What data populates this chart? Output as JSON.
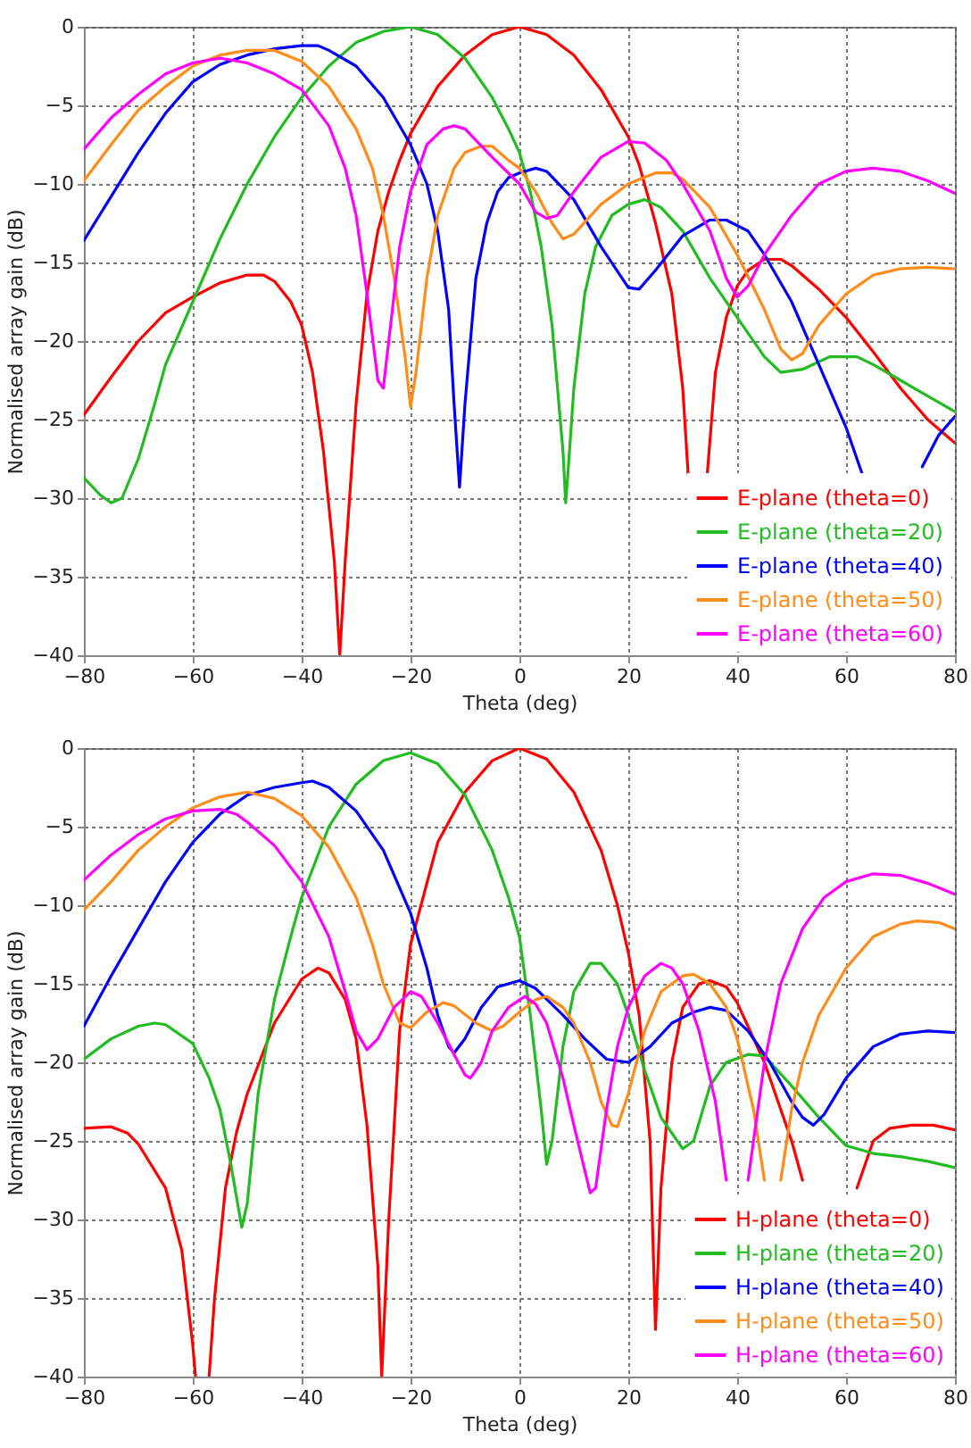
{
  "chart_data": [
    {
      "type": "line",
      "xlabel": "Theta (deg)",
      "ylabel": "Normalised array gain (dB)",
      "xlim": [
        -80,
        80
      ],
      "ylim": [
        -40,
        0
      ],
      "xticks": [
        -80,
        -60,
        -40,
        -20,
        0,
        20,
        40,
        60,
        80
      ],
      "yticks": [
        -40,
        -35,
        -30,
        -25,
        -20,
        -15,
        -10,
        -5,
        0
      ],
      "grid": true,
      "legend": "bottom right",
      "series": [
        {
          "name": "E-plane (theta=0)",
          "color": "#ff0000",
          "x": [
            -80,
            -75,
            -70,
            -65,
            -60,
            -55,
            -50,
            -47,
            -45,
            -42,
            -40,
            -38,
            -36,
            -34,
            -33,
            -32,
            -30,
            -28,
            -26,
            -24,
            -22,
            -20,
            -15,
            -10,
            -5,
            0,
            5,
            10,
            15,
            20,
            22,
            25,
            28,
            30,
            31,
            32,
            34.5,
            36,
            38,
            40,
            42,
            45,
            48,
            50,
            55,
            60,
            65,
            70,
            75,
            80
          ],
          "values": [
            -24.7,
            -22.3,
            -20,
            -18.2,
            -17.2,
            -16.3,
            -15.8,
            -15.8,
            -16.2,
            -17.5,
            -19,
            -22,
            -27,
            -34,
            -40,
            -34,
            -24,
            -17,
            -13,
            -10.5,
            -8.5,
            -6.8,
            -3.8,
            -1.8,
            -0.5,
            0,
            -0.5,
            -1.8,
            -4,
            -7,
            -8.8,
            -12.5,
            -17,
            -23,
            -28.5,
            null,
            -28.5,
            -22,
            -18.5,
            -16.5,
            -15.5,
            -14.8,
            -14.8,
            -15.2,
            -16.7,
            -18.5,
            -20.7,
            -23,
            -25,
            -26.5
          ]
        },
        {
          "name": "E-plane (theta=20)",
          "color": "#22bb22",
          "x": [
            -80,
            -77,
            -75,
            -73,
            -70,
            -67,
            -65,
            -60,
            -55,
            -50,
            -45,
            -40,
            -35,
            -30,
            -25,
            -20,
            -15,
            -10,
            -5,
            -2,
            0,
            2,
            4,
            6,
            8,
            8.5,
            9,
            10,
            12,
            14,
            17,
            20,
            23,
            26,
            30,
            35,
            40,
            45,
            48,
            52,
            57,
            62,
            65,
            70,
            75,
            80
          ],
          "values": [
            -28.7,
            -29.8,
            -30.3,
            -30,
            -27.5,
            -24,
            -21.5,
            -17.5,
            -13.5,
            -10,
            -7,
            -4.5,
            -2.5,
            -1,
            -0.3,
            0,
            -0.5,
            -2,
            -4.5,
            -6.5,
            -8,
            -10.5,
            -14,
            -19,
            -27,
            -30.3,
            -28,
            -23,
            -17,
            -14,
            -12,
            -11.3,
            -11,
            -11.5,
            -13,
            -16,
            -18.5,
            -21,
            -22,
            -21.8,
            -21,
            -21,
            -21.5,
            -22.5,
            -23.5,
            -24.5
          ]
        },
        {
          "name": "E-plane (theta=40)",
          "color": "#0000ff",
          "x": [
            -80,
            -75,
            -70,
            -65,
            -60,
            -55,
            -50,
            -45,
            -40,
            -37,
            -35,
            -30,
            -25,
            -20,
            -17,
            -15,
            -13,
            -12,
            -11,
            -10,
            -8,
            -6,
            -4,
            -2,
            0,
            3,
            5,
            10,
            15,
            20,
            22,
            25,
            30,
            35,
            38,
            42,
            45,
            50,
            55,
            60,
            63,
            68,
            74,
            77,
            80
          ],
          "values": [
            -13.6,
            -10.8,
            -8,
            -5.5,
            -3.5,
            -2.4,
            -1.8,
            -1.4,
            -1.2,
            -1.2,
            -1.5,
            -2.5,
            -4.5,
            -7.5,
            -10,
            -13,
            -18,
            -24,
            -29.3,
            -24,
            -16,
            -12.5,
            -10.5,
            -9.6,
            -9.3,
            -9,
            -9.2,
            -11,
            -14,
            -16.6,
            -16.7,
            -15.5,
            -13.3,
            -12.3,
            -12.3,
            -13,
            -14.5,
            -17.5,
            -21.5,
            -25.5,
            -28.5,
            null,
            -28,
            -26,
            -24.8
          ]
        },
        {
          "name": "E-plane (theta=50)",
          "color": "#ff8c1a",
          "x": [
            -80,
            -75,
            -70,
            -65,
            -60,
            -55,
            -50,
            -45,
            -40,
            -35,
            -30,
            -27,
            -25,
            -23,
            -21,
            -20,
            -19,
            -17,
            -15,
            -12,
            -10,
            -7,
            -5,
            -2,
            0,
            3,
            6,
            8,
            10,
            15,
            20,
            25,
            28,
            30,
            35,
            40,
            45,
            48,
            50,
            52,
            55,
            60,
            65,
            70,
            75,
            80
          ],
          "values": [
            -9.8,
            -7.5,
            -5.3,
            -3.8,
            -2.5,
            -1.8,
            -1.5,
            -1.5,
            -2.2,
            -3.8,
            -6.5,
            -9,
            -12,
            -16,
            -21,
            -24.2,
            -22,
            -16,
            -12,
            -9,
            -8,
            -7.6,
            -7.6,
            -8.5,
            -9,
            -10.5,
            -12.5,
            -13.5,
            -13.2,
            -11.3,
            -10,
            -9.3,
            -9.3,
            -9.7,
            -11.5,
            -14.5,
            -18,
            -20.5,
            -21.2,
            -20.8,
            -19,
            -17,
            -15.8,
            -15.4,
            -15.3,
            -15.4
          ]
        },
        {
          "name": "E-plane (theta=60)",
          "color": "#ff00ff",
          "x": [
            -80,
            -75,
            -70,
            -65,
            -60,
            -55,
            -50,
            -45,
            -40,
            -35,
            -32,
            -30,
            -28,
            -26,
            -25,
            -24,
            -22,
            -20,
            -17,
            -14,
            -12,
            -10,
            -5,
            0,
            3,
            5,
            7,
            10,
            15,
            20,
            23,
            27,
            30,
            35,
            38,
            40,
            42,
            45,
            50,
            55,
            60,
            65,
            70,
            75,
            80
          ],
          "values": [
            -7.8,
            -5.8,
            -4.3,
            -3,
            -2.3,
            -2,
            -2.3,
            -3,
            -4,
            -6.3,
            -9,
            -12,
            -17,
            -22.5,
            -23,
            -20,
            -14,
            -10.5,
            -7.5,
            -6.5,
            -6.3,
            -6.5,
            -8.3,
            -10,
            -11.8,
            -12.2,
            -12,
            -10.5,
            -8.3,
            -7.3,
            -7.4,
            -8.5,
            -10,
            -13,
            -16,
            -17.2,
            -16.5,
            -14.5,
            -12,
            -10,
            -9.2,
            -9,
            -9.2,
            -9.8,
            -10.6
          ]
        }
      ]
    },
    {
      "type": "line",
      "xlabel": "Theta (deg)",
      "ylabel": "Normalised array gain (dB)",
      "xlim": [
        -80,
        80
      ],
      "ylim": [
        -40,
        0
      ],
      "xticks": [
        -80,
        -60,
        -40,
        -20,
        0,
        20,
        40,
        60,
        80
      ],
      "yticks": [
        -40,
        -35,
        -30,
        -25,
        -20,
        -15,
        -10,
        -5,
        0
      ],
      "grid": true,
      "legend": "bottom right",
      "series": [
        {
          "name": "H-plane (theta=0)",
          "color": "#ff0000",
          "x": [
            -80,
            -75,
            -72,
            -70,
            -65,
            -62,
            -60,
            -59.5,
            -58,
            -57,
            -56,
            -54,
            -52,
            -50,
            -45,
            -40,
            -37,
            -35,
            -32,
            -30,
            -28,
            -26,
            -25.3,
            -24,
            -22,
            -20,
            -15,
            -10,
            -5,
            0,
            5,
            10,
            15,
            18,
            20,
            22,
            24,
            25,
            26,
            28,
            30,
            33,
            35,
            38,
            40,
            45,
            50,
            52,
            57,
            62,
            65,
            68,
            72,
            76,
            80
          ],
          "values": [
            -24.2,
            -24.1,
            -24.5,
            -25.2,
            -28,
            -32,
            -38,
            -40,
            null,
            -40,
            -35,
            -28,
            -24.5,
            -22,
            -17.5,
            -14.7,
            -14,
            -14.3,
            -16,
            -18.5,
            -24,
            -33,
            -40,
            -30,
            -18,
            -12.5,
            -6,
            -2.8,
            -0.8,
            0,
            -0.7,
            -2.8,
            -6.5,
            -10,
            -13,
            -17,
            -25,
            -37,
            -28,
            -20,
            -16.5,
            -15,
            -14.8,
            -15.2,
            -16.2,
            -20,
            -25,
            -27.5,
            null,
            -28,
            -25,
            -24.2,
            -24,
            -24,
            -24.3
          ]
        },
        {
          "name": "H-plane (theta=20)",
          "color": "#22bb22",
          "x": [
            -80,
            -75,
            -70,
            -67,
            -65,
            -60,
            -57,
            -55,
            -53,
            -51,
            -50,
            -48,
            -45,
            -42,
            -40,
            -35,
            -30,
            -25,
            -20,
            -15,
            -10,
            -5,
            -2,
            0,
            2,
            4,
            5,
            6,
            8,
            10,
            13,
            15,
            18,
            20,
            23,
            26,
            30,
            32,
            35,
            38,
            42,
            45,
            50,
            55,
            60,
            65,
            70,
            75,
            80
          ],
          "values": [
            -19.8,
            -18.5,
            -17.7,
            -17.5,
            -17.6,
            -18.8,
            -21,
            -23,
            -26.5,
            -30.5,
            -29,
            -22,
            -16,
            -12,
            -9.5,
            -5,
            -2.3,
            -0.8,
            -0.3,
            -1,
            -3,
            -6.5,
            -9.5,
            -12,
            -17,
            -23,
            -26.5,
            -25,
            -19,
            -15.5,
            -13.7,
            -13.7,
            -15,
            -17,
            -20.5,
            -23.5,
            -25.5,
            -25,
            -21.5,
            -20,
            -19.5,
            -19.6,
            -21.5,
            -23.5,
            -25.3,
            -25.8,
            -26,
            -26.3,
            -26.7
          ]
        },
        {
          "name": "H-plane (theta=40)",
          "color": "#0000ff",
          "x": [
            -80,
            -75,
            -70,
            -65,
            -60,
            -55,
            -50,
            -45,
            -40,
            -38,
            -35,
            -30,
            -25,
            -20,
            -17,
            -15,
            -13,
            -12,
            -10,
            -7,
            -4,
            0,
            3,
            8,
            12,
            16,
            20,
            24,
            28,
            32,
            35,
            38,
            42,
            46,
            50,
            52,
            54,
            56,
            60,
            65,
            70,
            75,
            80
          ],
          "values": [
            -17.7,
            -14.5,
            -11.5,
            -8.5,
            -6,
            -4.2,
            -3,
            -2.5,
            -2.2,
            -2.1,
            -2.5,
            -4,
            -6.5,
            -10.5,
            -14,
            -17,
            -19,
            -19.4,
            -18.5,
            -16.5,
            -15.2,
            -14.8,
            -15.3,
            -17,
            -18.5,
            -19.8,
            -20,
            -19,
            -17.5,
            -16.8,
            -16.5,
            -16.7,
            -18,
            -20,
            -22.5,
            -23.5,
            -24,
            -23.3,
            -21,
            -19,
            -18.2,
            -18,
            -18.1
          ]
        },
        {
          "name": "H-plane (theta=50)",
          "color": "#ff8c1a",
          "x": [
            -80,
            -75,
            -70,
            -65,
            -60,
            -55,
            -50,
            -45,
            -40,
            -35,
            -30,
            -27,
            -25,
            -22,
            -20,
            -17,
            -14,
            -12,
            -8,
            -5,
            -3,
            0,
            3,
            5,
            8,
            10,
            13,
            15,
            17,
            18,
            20,
            23,
            26,
            30,
            32,
            35,
            38,
            40,
            43,
            45,
            46.5,
            48,
            50,
            52,
            55,
            60,
            65,
            70,
            73,
            77,
            80
          ],
          "values": [
            -10.3,
            -8.5,
            -6.5,
            -5,
            -3.8,
            -3.1,
            -2.8,
            -3.2,
            -4.3,
            -6.3,
            -9.5,
            -12.5,
            -15,
            -17.5,
            -17.8,
            -16.8,
            -16.2,
            -16.4,
            -17.5,
            -18,
            -17.7,
            -16.8,
            -16,
            -15.8,
            -16.5,
            -17.5,
            -20,
            -22.5,
            -24,
            -24.1,
            -22,
            -18,
            -15.5,
            -14.5,
            -14.4,
            -15,
            -16.5,
            -18.5,
            -23,
            -27.5,
            null,
            -27.5,
            -23,
            -20,
            -17,
            -14,
            -12,
            -11.2,
            -11,
            -11.1,
            -11.5
          ]
        },
        {
          "name": "H-plane (theta=60)",
          "color": "#ff00ff",
          "x": [
            -80,
            -75,
            -70,
            -65,
            -60,
            -55,
            -52,
            -50,
            -45,
            -40,
            -35,
            -32,
            -30,
            -28,
            -26,
            -23,
            -20,
            -18,
            -15,
            -12,
            -10,
            -9,
            -7,
            -5,
            -2,
            1,
            3,
            5,
            8,
            10,
            13,
            14,
            16,
            18,
            20,
            23,
            26,
            28,
            30,
            33,
            36,
            38,
            40,
            42,
            45,
            48,
            52,
            56,
            60,
            65,
            70,
            75,
            80
          ],
          "values": [
            -8.4,
            -6.8,
            -5.5,
            -4.5,
            -4,
            -3.9,
            -4.2,
            -4.7,
            -6.2,
            -8.5,
            -12,
            -15.5,
            -18,
            -19.2,
            -18.5,
            -16.5,
            -15.5,
            -15.8,
            -17.5,
            -19.5,
            -20.8,
            -21,
            -20,
            -18,
            -16.5,
            -15.8,
            -16.3,
            -17.5,
            -21,
            -24,
            -28.3,
            -28,
            -23,
            -19,
            -16.5,
            -14.5,
            -13.7,
            -14,
            -15,
            -18,
            -22.5,
            -27.5,
            null,
            -27.5,
            -20,
            -15,
            -11.5,
            -9.5,
            -8.5,
            -8,
            -8.1,
            -8.6,
            -9.3
          ]
        }
      ]
    }
  ]
}
